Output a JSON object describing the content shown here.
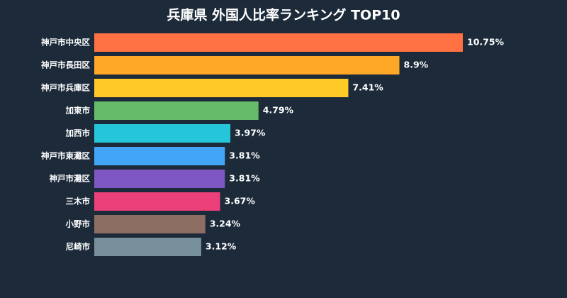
{
  "chart_data": {
    "type": "bar",
    "orientation": "horizontal",
    "title": "兵庫県 外国人比率ランキング TOP10",
    "categories": [
      "神戸市中央区",
      "神戸市長田区",
      "神戸市兵庫区",
      "加東市",
      "加西市",
      "神戸市東灘区",
      "神戸市灘区",
      "三木市",
      "小野市",
      "尼崎市"
    ],
    "values": [
      10.75,
      8.9,
      7.41,
      4.79,
      3.97,
      3.81,
      3.81,
      3.67,
      3.24,
      3.12
    ],
    "value_labels": [
      "10.75%",
      "8.9%",
      "7.41%",
      "4.79%",
      "3.97%",
      "3.81%",
      "3.81%",
      "3.67%",
      "3.24%",
      "3.12%"
    ],
    "colors": [
      "#ff7043",
      "#ffa726",
      "#ffca28",
      "#66bb6a",
      "#26c6da",
      "#42a5f5",
      "#7e57c2",
      "#ec407a",
      "#8d6e63",
      "#78909c"
    ]
  }
}
